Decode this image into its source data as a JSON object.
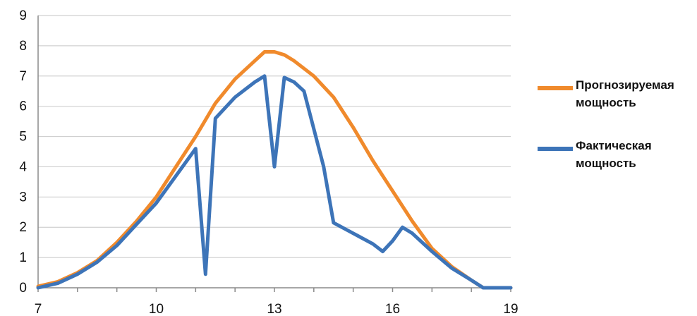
{
  "chart_data": {
    "type": "line",
    "title": "",
    "xlabel": "",
    "ylabel": "",
    "xlim": [
      7,
      19
    ],
    "ylim": [
      0,
      9
    ],
    "x_ticks": [
      7,
      10,
      13,
      16,
      19
    ],
    "y_ticks": [
      0,
      1,
      2,
      3,
      4,
      5,
      6,
      7,
      8,
      9
    ],
    "grid": "horizontal",
    "legend_position": "right",
    "series": [
      {
        "name": "Прогнозируемая мощность",
        "color": "#f08a2c",
        "points": [
          [
            7,
            0.05
          ],
          [
            7.5,
            0.2
          ],
          [
            8,
            0.5
          ],
          [
            8.5,
            0.9
          ],
          [
            9,
            1.5
          ],
          [
            9.5,
            2.2
          ],
          [
            10,
            3.0
          ],
          [
            10.5,
            4.0
          ],
          [
            11,
            5.0
          ],
          [
            11.5,
            6.1
          ],
          [
            12,
            6.9
          ],
          [
            12.5,
            7.5
          ],
          [
            12.75,
            7.8
          ],
          [
            13,
            7.8
          ],
          [
            13.25,
            7.7
          ],
          [
            13.5,
            7.5
          ],
          [
            14,
            7.0
          ],
          [
            14.5,
            6.3
          ],
          [
            15,
            5.3
          ],
          [
            15.5,
            4.2
          ],
          [
            16,
            3.2
          ],
          [
            16.5,
            2.2
          ],
          [
            17,
            1.3
          ],
          [
            17.5,
            0.7
          ],
          [
            18,
            0.25
          ],
          [
            18.3,
            0.0
          ],
          [
            19,
            0.0
          ]
        ]
      },
      {
        "name": "Фактическая мощность",
        "color": "#3d74b8",
        "points": [
          [
            7,
            0.0
          ],
          [
            7.5,
            0.15
          ],
          [
            8,
            0.45
          ],
          [
            8.5,
            0.85
          ],
          [
            9,
            1.4
          ],
          [
            9.5,
            2.1
          ],
          [
            10,
            2.8
          ],
          [
            10.5,
            3.7
          ],
          [
            11,
            4.6
          ],
          [
            11.25,
            0.45
          ],
          [
            11.5,
            5.6
          ],
          [
            12,
            6.3
          ],
          [
            12.5,
            6.8
          ],
          [
            12.75,
            7.0
          ],
          [
            13,
            4.0
          ],
          [
            13.25,
            6.95
          ],
          [
            13.5,
            6.8
          ],
          [
            13.75,
            6.5
          ],
          [
            14.25,
            4.0
          ],
          [
            14.5,
            2.15
          ],
          [
            15,
            1.8
          ],
          [
            15.5,
            1.45
          ],
          [
            15.75,
            1.2
          ],
          [
            16,
            1.55
          ],
          [
            16.25,
            2.0
          ],
          [
            16.5,
            1.8
          ],
          [
            17,
            1.2
          ],
          [
            17.5,
            0.65
          ],
          [
            18,
            0.25
          ],
          [
            18.3,
            0.0
          ],
          [
            19,
            0.0
          ]
        ]
      }
    ]
  }
}
